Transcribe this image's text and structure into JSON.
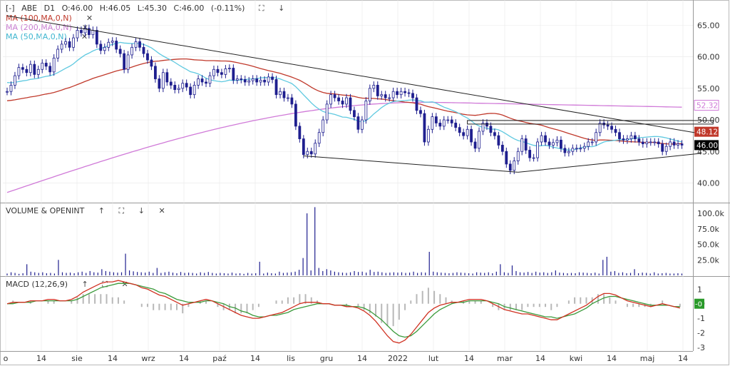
{
  "colors": {
    "candle": "#1f1f8f",
    "ma100": "#c0392b",
    "ma200": "#d07ad8",
    "ma50": "#5fc9e0",
    "volume": "#1f1f8f",
    "macd_line": "#d03020",
    "signal_line": "#3a9a3a",
    "histogram": "#b8b8b8",
    "trendline": "#222222",
    "grid": "#e8e8e8"
  },
  "header": {
    "expand": "[-]",
    "ticker": "ABE",
    "interval": "D1",
    "ohlc": {
      "o": "O:46.00",
      "h": "H:46.05",
      "l": "L:45.30",
      "c": "C:46.00",
      "chg": "(-0.11%)"
    }
  },
  "indicators": {
    "ma100": "MA (100,MA,0,N)",
    "ma200": "MA (200,MA,0,N)",
    "ma50": "MA (50,MA,0,N)"
  },
  "panels": {
    "volume_title": "VOLUME & OPENINT",
    "macd_title": "MACD (12,26,9)"
  },
  "icons": {
    "close": "close-icon",
    "up": "arrow-up-icon",
    "down": "arrow-down-icon",
    "maximize": "maximize-icon"
  },
  "chart_data": [
    {
      "type": "candlestick",
      "title": "ABE D1",
      "ylim": [
        37,
        69
      ],
      "y_ticks": [
        "65.00",
        "60.00",
        "55.00",
        "50.00",
        "45.00",
        "40.00"
      ],
      "y_tick_values": [
        65,
        60,
        55,
        50,
        45,
        40
      ],
      "x_ticks": [
        "o",
        "14",
        "sie",
        "14",
        "wrz",
        "14",
        "paź",
        "14",
        "lis",
        "gru",
        "14",
        "2022",
        "lut",
        "14",
        "mar",
        "14",
        "kwi",
        "14",
        "maj",
        "14"
      ],
      "price_labels": [
        {
          "text": "52.32",
          "value": 52.32,
          "series": "MA 200"
        },
        {
          "text": "48.12",
          "value": 48.12,
          "series": "MA 100"
        },
        {
          "text": "46.00",
          "value": 46.0,
          "series": "Close"
        }
      ],
      "closes": [
        54.5,
        55.5,
        57.0,
        58.3,
        58.0,
        57.5,
        58.8,
        57.2,
        58.0,
        59.0,
        58.5,
        57.6,
        59.8,
        61.2,
        62.0,
        62.4,
        61.5,
        63.0,
        64.2,
        63.8,
        64.5,
        63.5,
        64.2,
        62.0,
        61.0,
        61.5,
        62.3,
        62.5,
        61.2,
        60.5,
        58.0,
        60.3,
        61.5,
        62.4,
        61.5,
        60.5,
        59.5,
        58.5,
        56.5,
        55.0,
        57.5,
        56.0,
        55.5,
        54.8,
        55.0,
        55.8,
        55.2,
        54.0,
        55.5,
        56.5,
        56.0,
        55.8,
        57.0,
        58.0,
        57.5,
        57.2,
        58.1,
        58.2,
        56.3,
        56.5,
        56.4,
        56.0,
        56.2,
        56.5,
        56.0,
        56.3,
        56.0,
        56.8,
        56.4,
        54.0,
        54.5,
        53.5,
        53.5,
        52.5,
        49.0,
        47.0,
        44.5,
        45.0,
        44.6,
        46.3,
        48.0,
        50.0,
        52.5,
        54.0,
        53.5,
        53.0,
        52.5,
        53.5,
        51.5,
        50.5,
        48.5,
        50.0,
        53.0,
        55.0,
        55.5,
        53.8,
        54.0,
        53.5,
        53.5,
        54.5,
        54.0,
        54.5,
        54.3,
        54.2,
        53.5,
        51.5,
        51.0,
        46.5,
        48.5,
        50.5,
        49.5,
        49.0,
        50.0,
        50.0,
        49.5,
        48.8,
        48.0,
        47.5,
        48.5,
        46.5,
        45.5,
        48.2,
        49.5,
        49.0,
        48.0,
        47.5,
        46.0,
        45.0,
        43.0,
        42.0,
        43.5,
        45.0,
        47.0,
        45.2,
        44.0,
        44.0,
        46.5,
        47.5,
        46.5,
        46.0,
        46.4,
        46.8,
        45.5,
        44.8,
        45.0,
        45.5,
        45.5,
        45.5,
        45.8,
        46.5,
        46.5,
        48.0,
        49.5,
        49.2,
        49.0,
        48.5,
        48.0,
        47.0,
        46.8,
        47.0,
        47.5,
        47.0,
        46.5,
        46.2,
        46.5,
        46.5,
        46.5,
        46.2,
        45.0,
        45.8,
        46.5,
        46.0,
        46.2,
        46.0
      ]
    },
    {
      "type": "bar",
      "title": "VOLUME & OPENINT",
      "ylim": [
        0,
        115000
      ],
      "y_ticks": [
        "100.0k",
        "75.0k",
        "50.0k",
        "25.0k"
      ],
      "y_tick_values": [
        100000,
        75000,
        50000,
        25000
      ],
      "values": [
        3000,
        5000,
        4000,
        2500,
        3500,
        18000,
        6000,
        5000,
        4000,
        5000,
        3500,
        4000,
        3000,
        25000,
        5000,
        4000,
        4500,
        3500,
        5000,
        6000,
        4000,
        7000,
        5000,
        4500,
        10000,
        7000,
        6000,
        5000,
        4500,
        5000,
        35000,
        8000,
        6500,
        5500,
        5000,
        4500,
        6000,
        4000,
        12000,
        4000,
        5000,
        6000,
        4500,
        3500,
        5500,
        4000,
        4500,
        4000,
        3000,
        5000,
        4000,
        5500,
        4000,
        3000,
        4000,
        3500,
        3000,
        4500,
        3000,
        3500,
        2500,
        4000,
        3000,
        3500,
        22000,
        3000,
        4500,
        3500,
        3000,
        6000,
        4000,
        4500,
        5000,
        6000,
        9000,
        28000,
        100000,
        8000,
        110000,
        12000,
        7000,
        10000,
        8000,
        6000,
        5000,
        4500,
        4000,
        5000,
        7000,
        5500,
        6000,
        4500,
        9000,
        5500,
        6000,
        5000,
        4000,
        4500,
        5000,
        4500,
        5000,
        4000,
        4500,
        6000,
        4000,
        5000,
        4500,
        38000,
        6000,
        5000,
        4500,
        4000,
        3500,
        4000,
        5000,
        4500,
        4000,
        3500,
        3000,
        5000,
        4500,
        4000,
        5000,
        3500,
        6000,
        18000,
        5000,
        4000,
        16000,
        7000,
        5000,
        4500,
        5500,
        4000,
        6000,
        4500,
        5000,
        4000,
        5000,
        8000,
        4500,
        4000,
        3500,
        4000,
        3500,
        5000,
        4500,
        4000,
        3500,
        4500,
        3000,
        25000,
        30000,
        6000,
        7000,
        4000,
        5000,
        3500,
        4000,
        10000,
        3500,
        4500,
        4000,
        3000,
        5000,
        3000,
        3500,
        4000,
        3000,
        3000,
        3500,
        3000
      ]
    },
    {
      "type": "line",
      "title": "MACD (12,26,9)",
      "ylim": [
        -3.2,
        1.8
      ],
      "y_ticks": [
        "1",
        "-0",
        "-1",
        "-2",
        "-3"
      ],
      "y_tick_values": [
        1,
        0,
        -1,
        -2,
        -3
      ],
      "current_label": "-0",
      "series": [
        {
          "name": "MACD",
          "values": [
            0.0,
            0.1,
            0.1,
            0.1,
            0.2,
            0.2,
            0.2,
            0.3,
            0.3,
            0.2,
            0.2,
            0.3,
            0.5,
            0.8,
            1.0,
            1.2,
            1.4,
            1.5,
            1.5,
            1.6,
            1.5,
            1.4,
            1.3,
            1.1,
            1.0,
            0.8,
            0.6,
            0.5,
            0.3,
            0.1,
            -0.1,
            0.0,
            0.1,
            0.2,
            0.3,
            0.2,
            0.0,
            -0.2,
            -0.4,
            -0.6,
            -0.8,
            -0.9,
            -1.0,
            -1.0,
            -0.9,
            -0.8,
            -0.7,
            -0.6,
            -0.4,
            -0.2,
            0.0,
            0.1,
            0.1,
            0.1,
            0.0,
            0.0,
            -0.1,
            -0.1,
            -0.2,
            -0.2,
            -0.3,
            -0.5,
            -0.8,
            -1.2,
            -1.7,
            -2.2,
            -2.6,
            -2.7,
            -2.5,
            -2.1,
            -1.6,
            -1.1,
            -0.6,
            -0.3,
            -0.1,
            0.0,
            0.1,
            0.1,
            0.2,
            0.3,
            0.3,
            0.3,
            0.2,
            0.0,
            -0.2,
            -0.4,
            -0.5,
            -0.6,
            -0.7,
            -0.7,
            -0.8,
            -0.9,
            -1.0,
            -1.1,
            -1.1,
            -0.9,
            -0.7,
            -0.5,
            -0.3,
            -0.1,
            0.2,
            0.5,
            0.7,
            0.7,
            0.6,
            0.4,
            0.2,
            0.1,
            0.0,
            -0.1,
            -0.2,
            -0.1,
            0.0,
            -0.1,
            -0.2,
            -0.3
          ]
        },
        {
          "name": "Signal",
          "values": [
            0.0,
            0.0,
            0.1,
            0.1,
            0.1,
            0.2,
            0.2,
            0.2,
            0.2,
            0.2,
            0.2,
            0.2,
            0.3,
            0.5,
            0.7,
            0.9,
            1.1,
            1.2,
            1.3,
            1.4,
            1.4,
            1.4,
            1.3,
            1.2,
            1.1,
            1.0,
            0.8,
            0.7,
            0.5,
            0.3,
            0.2,
            0.1,
            0.1,
            0.1,
            0.2,
            0.2,
            0.1,
            0.0,
            -0.2,
            -0.3,
            -0.5,
            -0.6,
            -0.8,
            -0.9,
            -0.9,
            -0.8,
            -0.8,
            -0.7,
            -0.6,
            -0.4,
            -0.3,
            -0.2,
            -0.1,
            0.0,
            0.0,
            0.0,
            -0.1,
            -0.1,
            -0.1,
            -0.2,
            -0.2,
            -0.3,
            -0.5,
            -0.8,
            -1.1,
            -1.5,
            -1.9,
            -2.2,
            -2.3,
            -2.2,
            -1.9,
            -1.5,
            -1.1,
            -0.7,
            -0.4,
            -0.2,
            0.0,
            0.1,
            0.1,
            0.2,
            0.2,
            0.2,
            0.2,
            0.1,
            0.0,
            -0.2,
            -0.3,
            -0.4,
            -0.5,
            -0.6,
            -0.7,
            -0.8,
            -0.9,
            -0.9,
            -1.0,
            -0.9,
            -0.8,
            -0.7,
            -0.5,
            -0.3,
            0.0,
            0.2,
            0.4,
            0.5,
            0.5,
            0.4,
            0.3,
            0.2,
            0.1,
            0.0,
            -0.1,
            -0.1,
            -0.1,
            -0.1,
            -0.2,
            -0.2
          ]
        }
      ]
    }
  ]
}
